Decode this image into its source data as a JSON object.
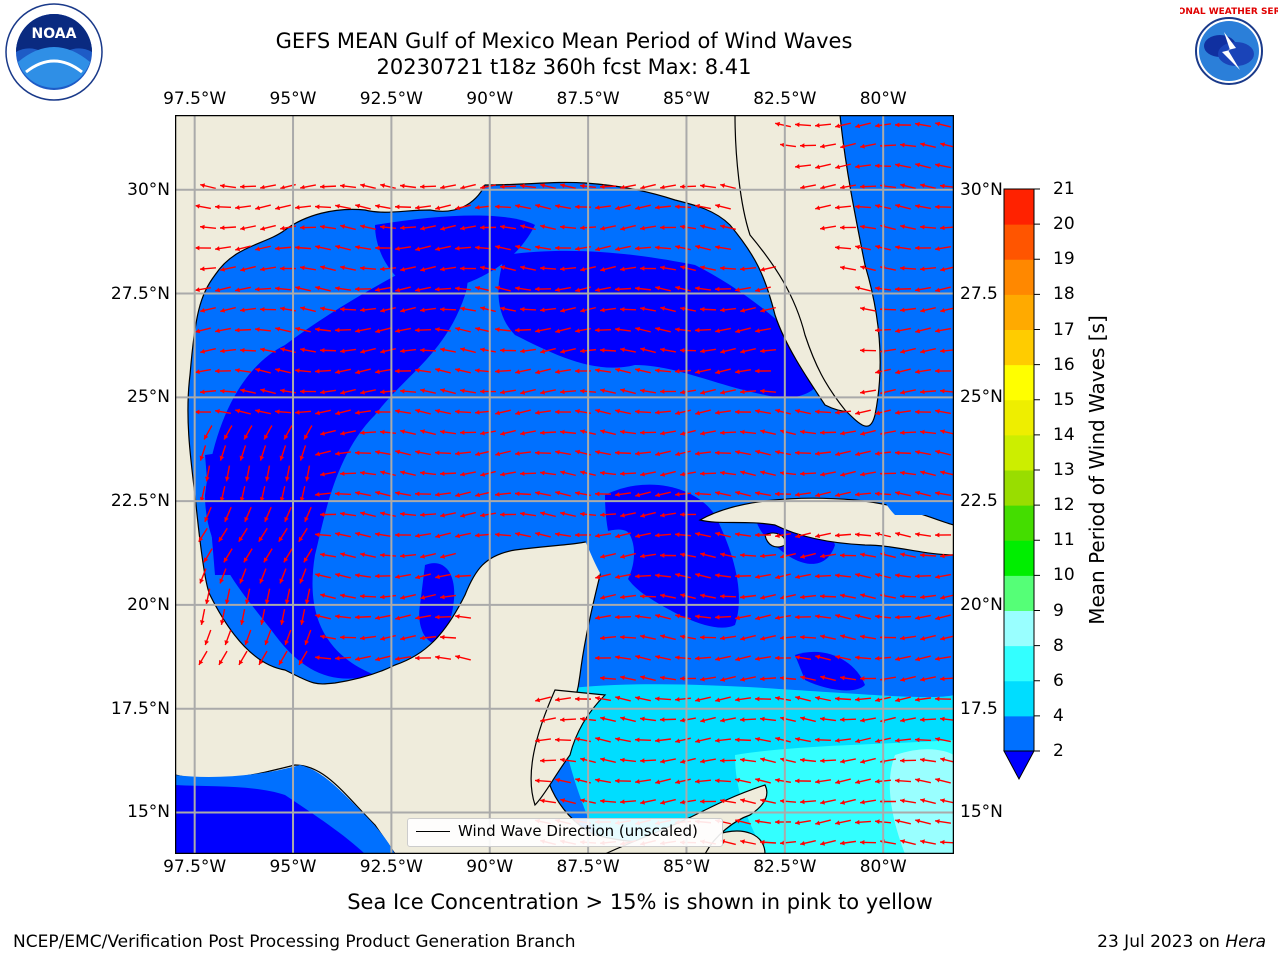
{
  "title": {
    "line1": "GEFS MEAN Gulf of Mexico Mean Period of Wind Waves",
    "line2": "20230721 t18z 360h fcst   Max: 8.41"
  },
  "map": {
    "lon_ticks": [
      "97.5°W",
      "95°W",
      "92.5°W",
      "90°W",
      "87.5°W",
      "85°W",
      "82.5°W",
      "80°W"
    ],
    "lat_ticks_left": [
      "30°N",
      "27.5°N",
      "25°N",
      "22.5°N",
      "20°N",
      "17.5°N",
      "15°N"
    ],
    "lat_ticks_right": [
      "30°N",
      "27.5",
      "25°N",
      "22.5",
      "20°N",
      "17.5",
      "15°N"
    ],
    "lon_range": [
      -98,
      -78.2
    ],
    "lat_range": [
      14,
      31.8
    ],
    "land_color": "#efecdc",
    "vector_color": "#ff0000",
    "prevailing_wind_direction": "east-to-west"
  },
  "legend": {
    "line_label": "Wind Wave Direction (unscaled)"
  },
  "colorbar": {
    "label": "Mean Period of Wind Waves [s]",
    "ticks": [
      "2",
      "4",
      "6",
      "8",
      "9",
      "10",
      "11",
      "12",
      "13",
      "14",
      "15",
      "16",
      "17",
      "18",
      "19",
      "20",
      "21"
    ],
    "colors": [
      "#0070ff",
      "#00ddff",
      "#33ffff",
      "#99ffff",
      "#55ff77",
      "#00ee00",
      "#44dd00",
      "#99dd00",
      "#ccee00",
      "#eeee00",
      "#ffff00",
      "#ffcc00",
      "#ffaa00",
      "#ff8800",
      "#ff5500",
      "#ff2200",
      "#ff0000"
    ],
    "under_color": "#0000ff",
    "extend": "min"
  },
  "chart_data": {
    "type": "heatmap",
    "title": "GEFS MEAN Gulf of Mexico Mean Period of Wind Waves",
    "subtitle": "20230721 t18z 360h fcst   Max: 8.41",
    "max_value": 8.41,
    "colorbar_label": "Mean Period of Wind Waves [s]",
    "levels": [
      2,
      4,
      6,
      8,
      9,
      10,
      11,
      12,
      13,
      14,
      15,
      16,
      17,
      18,
      19,
      20,
      21
    ],
    "x_range": [
      -98,
      -78.2
    ],
    "y_range": [
      14,
      31.8
    ],
    "x_ticks": [
      -97.5,
      -95,
      -92.5,
      -90,
      -87.5,
      -85,
      -82.5,
      -80
    ],
    "y_ticks": [
      15,
      17.5,
      20,
      22.5,
      25,
      27.5,
      30
    ],
    "grid": true,
    "legend_placement": "bottom-center",
    "dominant_range": "below 2 to 4 s in the Gulf; 4 to 8 s in the western Caribbean"
  },
  "notes": {
    "sea_ice": "Sea Ice Concentration > 15% is shown in pink to yellow"
  },
  "footer": {
    "left": "NCEP/EMC/Verification Post Processing Product Generation Branch",
    "date": "23 Jul 2023 on ",
    "machine": "Hera"
  },
  "logos": {
    "left": "NOAA",
    "left_ring": "NATIONAL OCEANIC AND ATMOSPHERIC ADMINISTRATION · U.S. DEPARTMENT OF COMMERCE",
    "right_ring": "NATIONAL WEATHER SERVICE"
  }
}
